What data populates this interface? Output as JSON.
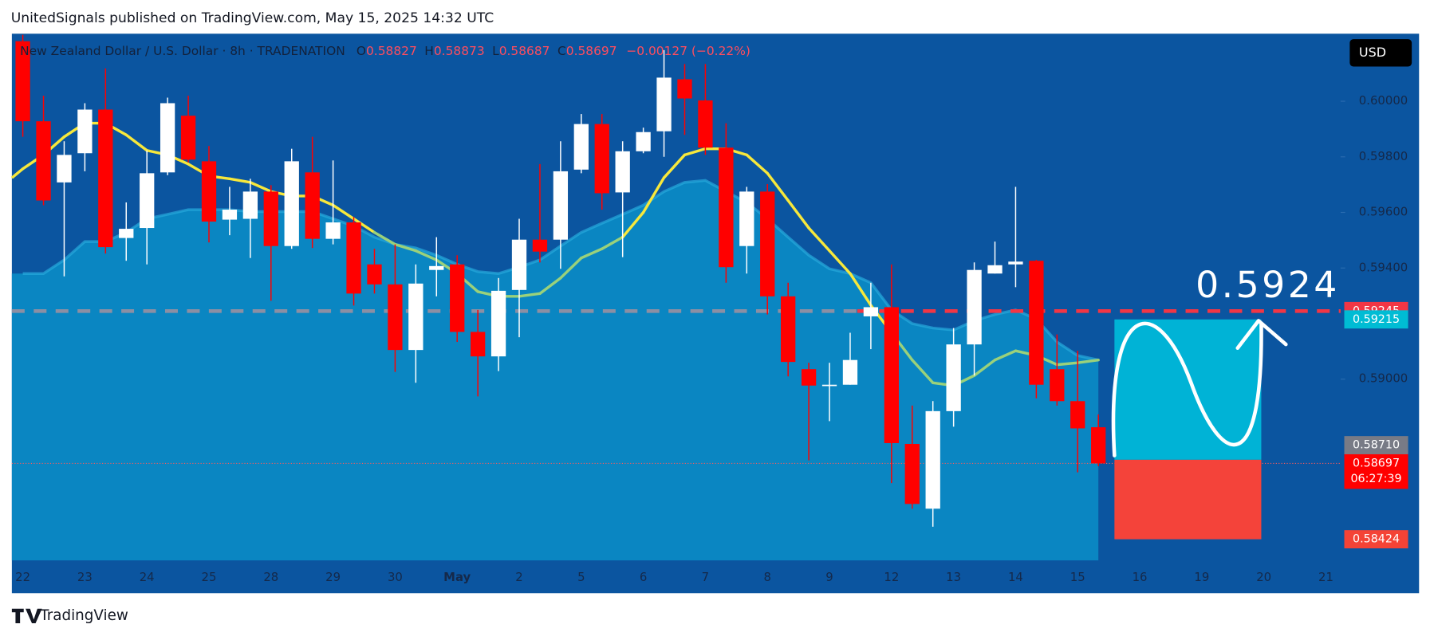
{
  "header": {
    "publisher": "UnitedSignals published on TradingView.com, May 15, 2025 14:32 UTC",
    "footer": "TradingView"
  },
  "chart_data": {
    "type": "candlestick",
    "title": "New Zealand Dollar / U.S. Dollar · 8h · TRADENATION",
    "ohlc_letters": [
      "O",
      "H",
      "L",
      "C"
    ],
    "change": "−0.00127 (−0.22%)",
    "currency": "USD",
    "up_color": "#ffffff",
    "down_color": "#ff0000",
    "open": [
      0.60216,
      0.59928,
      0.59708,
      0.59813,
      0.5997,
      0.59508,
      0.59544,
      0.59744,
      0.59948,
      0.59784,
      0.59574,
      0.59577,
      0.59675,
      0.59479,
      0.59744,
      0.59505,
      0.59564,
      0.59413,
      0.59341,
      0.59105,
      0.59393,
      0.59413,
      0.5917,
      0.59082,
      0.59321,
      0.59502,
      0.59502,
      0.59754,
      0.59918,
      0.59672,
      0.5982,
      0.59892,
      0.60079,
      0.60003,
      0.59833,
      0.59479,
      0.59675,
      0.59298,
      0.59036,
      0.58977,
      0.5898,
      0.59226,
      0.59259,
      0.58767,
      0.58534,
      0.58885,
      0.59125,
      0.5938,
      0.59413,
      0.59426,
      0.59036,
      0.58921,
      0.58827
    ],
    "high": [
      0.60239,
      0.6002,
      0.59856,
      0.59993,
      0.60118,
      0.59636,
      0.59823,
      0.60013,
      0.6002,
      0.59839,
      0.59692,
      0.59721,
      0.59698,
      0.59829,
      0.59872,
      0.59787,
      0.59584,
      0.59469,
      0.59485,
      0.59413,
      0.59511,
      0.59446,
      0.59249,
      0.59364,
      0.59577,
      0.59774,
      0.59856,
      0.59954,
      0.59954,
      0.59856,
      0.59905,
      0.60184,
      0.60134,
      0.60134,
      0.59921,
      0.59692,
      0.59702,
      0.59347,
      0.59059,
      0.59059,
      0.59167,
      0.59347,
      0.59413,
      0.58905,
      0.58921,
      0.59184,
      0.5942,
      0.59495,
      0.59692,
      0.59429,
      0.59161,
      0.59102,
      0.58873
    ],
    "low": [
      0.59872,
      0.59626,
      0.5937,
      0.59748,
      0.59452,
      0.59426,
      0.59413,
      0.59734,
      0.5978,
      0.59492,
      0.59518,
      0.59436,
      0.59282,
      0.59469,
      0.59472,
      0.59485,
      0.59265,
      0.59308,
      0.59026,
      0.58987,
      0.59298,
      0.59134,
      0.58938,
      0.59029,
      0.59151,
      0.5942,
      0.59397,
      0.59741,
      0.5961,
      0.59439,
      0.59813,
      0.598,
      0.59879,
      0.59807,
      0.59347,
      0.5938,
      0.59233,
      0.5901,
      0.58708,
      0.58849,
      0.5898,
      0.59108,
      0.58626,
      0.58534,
      0.58469,
      0.58829,
      0.59013,
      0.5938,
      0.59331,
      0.58931,
      0.58905,
      0.58665,
      0.58687
    ],
    "close": [
      0.59928,
      0.59643,
      0.59807,
      0.5997,
      0.59475,
      0.59541,
      0.59741,
      0.59993,
      0.5979,
      0.59567,
      0.5961,
      0.59675,
      0.59479,
      0.59784,
      0.59505,
      0.59564,
      0.59308,
      0.59341,
      0.59105,
      0.59344,
      0.59407,
      0.5917,
      0.59082,
      0.59318,
      0.59502,
      0.59459,
      0.59748,
      0.59918,
      0.59669,
      0.5982,
      0.59889,
      0.60085,
      0.6001,
      0.59833,
      0.59403,
      0.59675,
      0.59298,
      0.59062,
      0.58977,
      0.5898,
      0.59069,
      0.59259,
      0.5877,
      0.58551,
      0.58885,
      0.59125,
      0.59393,
      0.5941,
      0.59423,
      0.5898,
      0.58921,
      0.58823,
      0.58697
    ],
    "ma": {
      "values": [
        0.59757,
        0.59807,
        0.59872,
        0.59921,
        0.59921,
        0.59879,
        0.59823,
        0.59807,
        0.59774,
        0.59731,
        0.59721,
        0.59708,
        0.59675,
        0.59659,
        0.59659,
        0.59626,
        0.59577,
        0.59528,
        0.59485,
        0.59462,
        0.59429,
        0.5938,
        0.59315,
        0.59298,
        0.59298,
        0.59308,
        0.59364,
        0.59436,
        0.59469,
        0.59511,
        0.596,
        0.59725,
        0.59807,
        0.59829,
        0.59829,
        0.59807,
        0.59741,
        0.59643,
        0.59544,
        0.59462,
        0.5938,
        0.59266,
        0.59167,
        0.59069,
        0.58987,
        0.58977,
        0.59013,
        0.59069,
        0.59102,
        0.59085,
        0.59052,
        0.59059,
        0.59069
      ],
      "colors": [
        "#f7e83b",
        "#f7e83b",
        "#f7e83b",
        "#f7e83b",
        "#f7e83b",
        "#f7e83b",
        "#f7e83b",
        "#f7e83b",
        "#f7e83b",
        "#f7e83b",
        "#f7e83b",
        "#f7e83b",
        "#f7e83b",
        "#f7e83b",
        "#f7e83b",
        "#f7e83b",
        "#f7e83b",
        "#9ad17b",
        "#9ad17b",
        "#9ad17b",
        "#9ad17b",
        "#9ad17b",
        "#9ad17b",
        "#9ad17b",
        "#9ad17b",
        "#9ad17b",
        "#9ad17b",
        "#9ad17b",
        "#9ad17b",
        "#f7e83b",
        "#f7e83b",
        "#f7e83b",
        "#f7e83b",
        "#f7e83b",
        "#f7e83b",
        "#f7e83b",
        "#f7e83b",
        "#f7e83b",
        "#f7e83b",
        "#f7e83b",
        "#f7e83b",
        "#f7e83b",
        "#9ad17b",
        "#9ad17b",
        "#9ad17b",
        "#9ad17b",
        "#9ad17b",
        "#9ad17b",
        "#9ad17b",
        "#9ad17b",
        "#9ad17b",
        "#9ad17b",
        "#9ad17b"
      ]
    },
    "cloud": {
      "color": "#0a86c2",
      "values": [
        0.5938,
        0.5938,
        0.59429,
        0.59495,
        0.59495,
        0.59528,
        0.59577,
        0.59593,
        0.5961,
        0.5961,
        0.5961,
        0.59603,
        0.59603,
        0.59603,
        0.59603,
        0.59577,
        0.59551,
        0.59511,
        0.59485,
        0.59472,
        0.59446,
        0.59413,
        0.59387,
        0.5938,
        0.59403,
        0.59429,
        0.59479,
        0.59528,
        0.59561,
        0.59593,
        0.59626,
        0.59675,
        0.59708,
        0.59715,
        0.59675,
        0.59636,
        0.59577,
        0.59511,
        0.59446,
        0.59397,
        0.5938,
        0.59347,
        0.59249,
        0.592,
        0.59184,
        0.59177,
        0.5921,
        0.59233,
        0.59249,
        0.59216,
        0.59134,
        0.59085,
        0.59069
      ]
    },
    "x_labels": [
      "22",
      "23",
      "24",
      "25",
      "28",
      "29",
      "30",
      "May",
      "2",
      "5",
      "6",
      "7",
      "8",
      "9",
      "12",
      "13",
      "14",
      "15",
      "16",
      "19",
      "20",
      "21"
    ],
    "ylim": [
      0.58348,
      0.60243
    ],
    "yticks": [
      {
        "value": 0.6,
        "label": "0.60000"
      },
      {
        "value": 0.598,
        "label": "0.59800"
      },
      {
        "value": 0.596,
        "label": "0.59600"
      },
      {
        "value": 0.594,
        "label": "0.59400"
      },
      {
        "value": 0.59,
        "label": "0.59000"
      }
    ],
    "levels": {
      "resistance": 0.59245,
      "target": 0.59215,
      "entry": {
        "value": 0.5871,
        "label": "0.58710"
      },
      "stop": 0.58424
    },
    "annotation": "0.5924",
    "countdown": "06:27:39"
  }
}
